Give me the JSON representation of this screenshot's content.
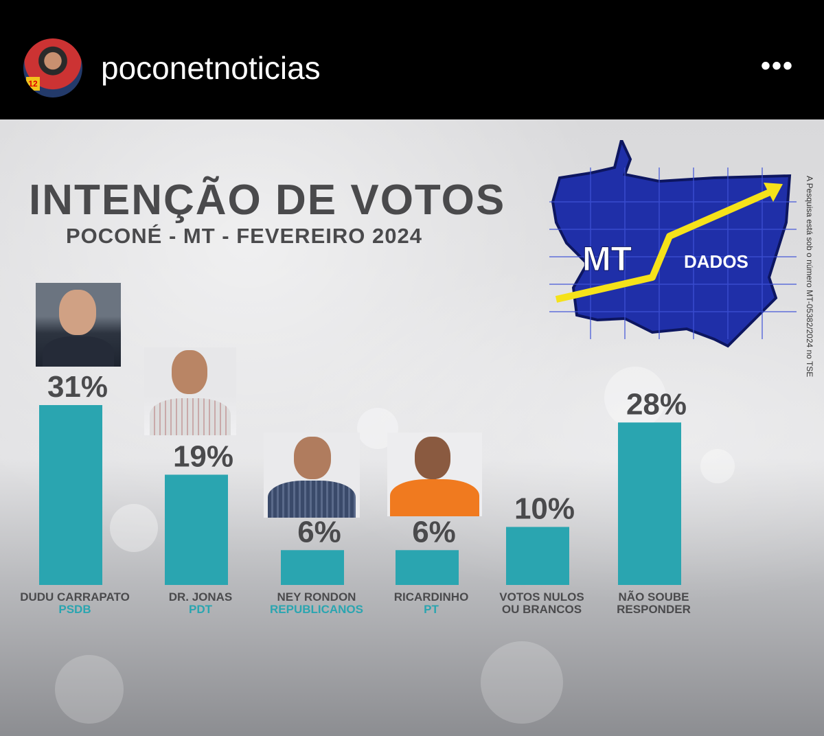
{
  "header": {
    "username": "poconetnoticias",
    "more_icon": "more-horizontal-icon",
    "avatar_badge": "12"
  },
  "graphic": {
    "title": "INTENÇÃO DE VOTOS",
    "subtitle": "POCONÉ - MT - FEVEREIRO 2024",
    "side_note": "A Pesquisa está sob o número MT-05382/2024 no TSE",
    "logo": {
      "text_main": "MT",
      "text_sub": "DADOS",
      "map_color": "#1f2fa8",
      "arrow_color": "#f5e21a"
    }
  },
  "colors": {
    "bar": "#2aa5b0",
    "text": "#4a4a4c",
    "party": "#2aa5b0"
  },
  "chart_data": {
    "type": "bar",
    "title": "INTENÇÃO DE VOTOS",
    "subtitle": "POCONÉ - MT - FEVEREIRO 2024",
    "categories": [
      "DUDU CARRAPATO",
      "DR. JONAS",
      "NEY RONDON",
      "RICARDINHO",
      "VOTOS NULOS OU BRANCOS",
      "NÃO SOUBE RESPONDER"
    ],
    "category_lines": [
      [
        "DUDU CARRAPATO"
      ],
      [
        "DR. JONAS"
      ],
      [
        "NEY RONDON"
      ],
      [
        "RICARDINHO"
      ],
      [
        "VOTOS NULOS",
        "OU BRANCOS"
      ],
      [
        "NÃO SOUBE",
        "RESPONDER"
      ]
    ],
    "parties": [
      "PSDB",
      "PDT",
      "REPUBLICANOS",
      "PT",
      "",
      ""
    ],
    "values": [
      31,
      19,
      6,
      6,
      10,
      28
    ],
    "value_labels": [
      "31%",
      "19%",
      "6%",
      "6%",
      "10%",
      "28%"
    ],
    "ylim": [
      0,
      31
    ],
    "grid": false,
    "legend": "none"
  }
}
